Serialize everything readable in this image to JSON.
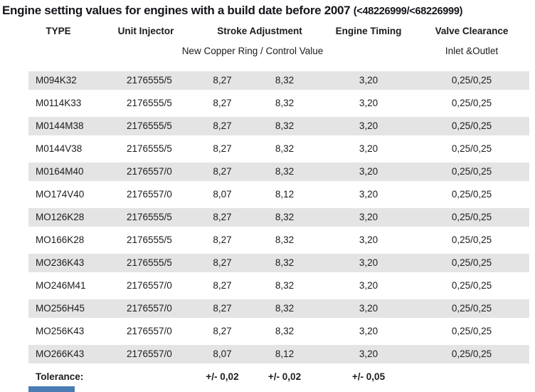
{
  "title": {
    "main": "Engine setting values for engines with a build date before 2007",
    "serial_range": "(<48226999/<68226999)"
  },
  "table": {
    "headers": [
      "TYPE",
      "Unit Injector",
      "Stroke Adjustment",
      "Engine Timing",
      "Valve Clearance"
    ],
    "subheaders": {
      "stroke_adjustment": "New Copper Ring / Control Value",
      "valve_clearance": "Inlet &Outlet"
    },
    "rows": [
      {
        "type": "M094K32",
        "unit_injector": "2176555/5",
        "stroke_new_ring": "8,27",
        "stroke_control": "8,32",
        "engine_timing": "3,20",
        "valve_clearance": "0,25/0,25"
      },
      {
        "type": "M0114K33",
        "unit_injector": "2176555/5",
        "stroke_new_ring": "8,27",
        "stroke_control": "8,32",
        "engine_timing": "3,20",
        "valve_clearance": "0,25/0,25"
      },
      {
        "type": "M0144M38",
        "unit_injector": "2176555/5",
        "stroke_new_ring": "8,27",
        "stroke_control": "8,32",
        "engine_timing": "3,20",
        "valve_clearance": "0,25/0,25"
      },
      {
        "type": "M0144V38",
        "unit_injector": "2176555/5",
        "stroke_new_ring": "8,27",
        "stroke_control": "8,32",
        "engine_timing": "3,20",
        "valve_clearance": "0,25/0,25"
      },
      {
        "type": "M0164M40",
        "unit_injector": "2176557/0",
        "stroke_new_ring": "8,27",
        "stroke_control": "8,32",
        "engine_timing": "3,20",
        "valve_clearance": "0,25/0,25"
      },
      {
        "type": "MO174V40",
        "unit_injector": "2176557/0",
        "stroke_new_ring": "8,07",
        "stroke_control": "8,12",
        "engine_timing": "3,20",
        "valve_clearance": "0,25/0,25"
      },
      {
        "type": "MO126K28",
        "unit_injector": "2176555/5",
        "stroke_new_ring": "8,27",
        "stroke_control": "8,32",
        "engine_timing": "3,20",
        "valve_clearance": "0,25/0,25"
      },
      {
        "type": "MO166K28",
        "unit_injector": "2176555/5",
        "stroke_new_ring": "8,27",
        "stroke_control": "8,32",
        "engine_timing": "3,20",
        "valve_clearance": "0,25/0,25"
      },
      {
        "type": "MO236K43",
        "unit_injector": "2176555/5",
        "stroke_new_ring": "8,27",
        "stroke_control": "8,32",
        "engine_timing": "3,20",
        "valve_clearance": "0,25/0,25"
      },
      {
        "type": "MO246M41",
        "unit_injector": "2176557/0",
        "stroke_new_ring": "8,27",
        "stroke_control": "8,32",
        "engine_timing": "3,20",
        "valve_clearance": "0,25/0,25"
      },
      {
        "type": "MO256H45",
        "unit_injector": "2176557/0",
        "stroke_new_ring": "8,27",
        "stroke_control": "8,32",
        "engine_timing": "3,20",
        "valve_clearance": "0,25/0,25"
      },
      {
        "type": "MO256K43",
        "unit_injector": "2176557/0",
        "stroke_new_ring": "8,27",
        "stroke_control": "8,32",
        "engine_timing": "3,20",
        "valve_clearance": "0,25/0,25"
      },
      {
        "type": "MO266K43",
        "unit_injector": "2176557/0",
        "stroke_new_ring": "8,07",
        "stroke_control": "8,12",
        "engine_timing": "3,20",
        "valve_clearance": "0,25/0,25"
      }
    ],
    "tolerance": {
      "label": "Tolerance:",
      "stroke_new_ring": "+/- 0,02",
      "stroke_control": "+/- 0,02",
      "engine_timing": "+/- 0,05"
    }
  },
  "colors": {
    "row_alternate": "#e4e4e4",
    "text": "#1d1d1f",
    "bottom_bar": "#4a7cb5"
  }
}
